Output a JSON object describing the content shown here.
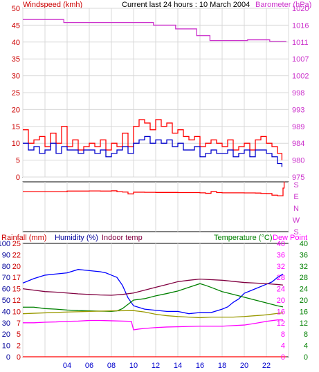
{
  "header": {
    "left_label": "Windspeed (kmh)",
    "title": "Current last 24 hours : 10 March 2004",
    "right_label": "Barometer (hPa)"
  },
  "lower_header": {
    "rainfall": "Rainfall (mm)",
    "humidity": "Humidity (%)",
    "indoor": "Indoor temp",
    "temperature": "Temperature (°C)",
    "dewpoint": "Dew Point"
  },
  "colors": {
    "wind_gust": "#ff0000",
    "wind_avg": "#0000cc",
    "barometer": "#cc33cc",
    "direction": "#ff0000",
    "humidity": "#0000ff",
    "indoor": "#800040",
    "temperature": "#008000",
    "dewpoint": "#ff00ff",
    "olive": "#999900",
    "rain": "#ff0000",
    "grid": "#d8d8d8"
  },
  "chart_data": [
    {
      "type": "line",
      "name": "wind-barometer",
      "x_ticks": [
        "04",
        "06",
        "08",
        "10",
        "12",
        "14",
        "16",
        "18",
        "20",
        "22"
      ],
      "y_left_ticks": [
        0,
        5,
        10,
        15,
        20,
        25,
        30,
        35,
        40,
        45,
        50
      ],
      "y_right_ticks": [
        975,
        980,
        984,
        989,
        993,
        998,
        1002,
        1007,
        1011,
        1016,
        1020
      ],
      "ylim_left": [
        0,
        50
      ],
      "ylim_right": [
        975,
        1020
      ],
      "xlim": [
        0,
        24
      ],
      "series": [
        {
          "key": "barometer",
          "axis": "right",
          "x": [
            0,
            3.7,
            3.7,
            11.8,
            11.8,
            13.8,
            13.8,
            15.7,
            15.7,
            16.9,
            16.9,
            20.3,
            20.3,
            22.3,
            22.3,
            23.8
          ],
          "y": [
            1017,
            1017,
            1016.2,
            1016.2,
            1015.5,
            1015.5,
            1014.5,
            1014.5,
            1012.7,
            1012.7,
            1011.4,
            1011.4,
            1011.6,
            1011.6,
            1011.2,
            1011.2
          ]
        },
        {
          "key": "wind_gust",
          "axis": "left",
          "x": [
            0,
            0.5,
            1,
            1.5,
            2,
            2.5,
            3,
            3.5,
            4,
            4.5,
            5,
            5.5,
            6,
            6.5,
            7,
            7.5,
            8,
            8.5,
            9,
            9.5,
            10,
            10.5,
            11,
            11.5,
            12,
            12.5,
            13,
            13.5,
            14,
            14.5,
            15,
            15.5,
            16,
            16.5,
            17,
            17.5,
            18,
            18.5,
            19,
            19.5,
            20,
            20.5,
            21,
            21.5,
            22,
            22.5,
            23,
            23.4
          ],
          "y": [
            14,
            10,
            11,
            12,
            9,
            13,
            10,
            15,
            9,
            11,
            8,
            9,
            10,
            9,
            11,
            8,
            10,
            9,
            13,
            9,
            15,
            17,
            16,
            14,
            17,
            15,
            16,
            13,
            14,
            12,
            11,
            12,
            9,
            10,
            11,
            10,
            9,
            11,
            8,
            9,
            10,
            8,
            11,
            12,
            10,
            9,
            7,
            5
          ]
        },
        {
          "key": "wind_avg",
          "axis": "left",
          "x": [
            0,
            0.5,
            1,
            1.5,
            2,
            2.5,
            3,
            3.5,
            4,
            4.5,
            5,
            5.5,
            6,
            6.5,
            7,
            7.5,
            8,
            8.5,
            9,
            9.5,
            10,
            10.5,
            11,
            11.5,
            12,
            12.5,
            13,
            13.5,
            14,
            14.5,
            15,
            15.5,
            16,
            16.5,
            17,
            17.5,
            18,
            18.5,
            19,
            19.5,
            20,
            20.5,
            21,
            21.5,
            22,
            22.5,
            23,
            23.4
          ],
          "y": [
            10,
            8,
            9,
            7,
            8,
            10,
            7,
            9,
            8,
            8,
            7,
            8,
            8,
            7,
            8,
            6,
            7,
            8,
            9,
            7,
            10,
            11,
            12,
            10,
            11,
            10,
            11,
            9,
            10,
            8,
            8,
            9,
            6,
            7,
            8,
            7,
            7,
            8,
            6,
            7,
            8,
            6,
            8,
            8,
            7,
            6,
            4,
            3
          ]
        }
      ]
    },
    {
      "type": "line",
      "name": "wind-direction",
      "y_right_ticks": [
        "S",
        "E",
        "N",
        "W",
        "S"
      ],
      "xlim": [
        0,
        24
      ],
      "series": [
        {
          "key": "direction",
          "x": [
            0,
            3.5,
            4,
            5,
            6,
            7,
            8,
            8.5,
            9,
            9.5,
            10,
            11,
            12,
            13,
            14,
            15,
            16,
            16.5,
            17,
            17.5,
            18,
            19,
            20,
            21,
            21.5,
            22,
            22.5,
            23,
            23.4,
            23.5,
            23.6
          ],
          "y": [
            0.79,
            0.79,
            0.74,
            0.74,
            0.73,
            0.74,
            0.72,
            0.79,
            0.82,
            0.97,
            0.83,
            0.84,
            0.85,
            0.85,
            0.86,
            0.86,
            0.88,
            0.92,
            0.78,
            0.86,
            0.88,
            0.88,
            0.89,
            0.9,
            0.93,
            0.94,
            1.07,
            1.12,
            1.12,
            0.5,
            -0.02
          ]
        }
      ]
    },
    {
      "type": "line",
      "name": "rain-humidity-temperature",
      "x_ticks": [
        "04",
        "06",
        "08",
        "10",
        "12",
        "14",
        "16",
        "18",
        "20",
        "22"
      ],
      "y_rain_ticks": [
        0,
        2,
        5,
        7,
        10,
        12,
        15,
        17,
        20,
        22,
        25
      ],
      "y_humidity_ticks": [
        0,
        10,
        20,
        30,
        40,
        50,
        60,
        70,
        80,
        90,
        100
      ],
      "y_temp_left_ticks": [
        0,
        4,
        8,
        12,
        16,
        20,
        24,
        28,
        32,
        36,
        40
      ],
      "y_temp_right_ticks": [
        0,
        4,
        8,
        12,
        16,
        20,
        24,
        28,
        32,
        36,
        40
      ],
      "xlim": [
        0,
        24
      ],
      "series": [
        {
          "key": "humidity",
          "axis": "humidity",
          "x": [
            0,
            1,
            2,
            3,
            4,
            5,
            6,
            7,
            7.5,
            8,
            8.5,
            9,
            9.5,
            10,
            11,
            12,
            13,
            14,
            15,
            16,
            17,
            18,
            18.5,
            19,
            19.5,
            20,
            21,
            22,
            22.5,
            23,
            23.5
          ],
          "y": [
            65,
            69,
            72,
            73,
            74,
            77,
            76,
            75,
            74,
            72,
            70,
            63,
            52,
            45,
            42,
            41,
            40,
            40,
            38,
            39,
            39,
            42,
            44,
            48,
            51,
            56,
            60,
            64,
            66,
            70,
            73
          ]
        },
        {
          "key": "indoor",
          "axis": "temp",
          "x": [
            0,
            1,
            2,
            3,
            4,
            5,
            6,
            7,
            8,
            9,
            10,
            11,
            12,
            13,
            14,
            15,
            16,
            17,
            18,
            19,
            20,
            21,
            22,
            23,
            23.5
          ],
          "y": [
            24,
            23.5,
            23,
            22.8,
            22.5,
            22.2,
            22,
            21.8,
            21.7,
            22,
            22.5,
            23.5,
            24.5,
            25.5,
            26.5,
            27,
            27.4,
            27.2,
            27,
            26.6,
            26.2,
            26,
            25.8,
            25.5,
            25.3
          ]
        },
        {
          "key": "temperature",
          "axis": "temp",
          "x": [
            0,
            1,
            2,
            3,
            4,
            5,
            6,
            7,
            8,
            8.5,
            9,
            9.5,
            10,
            11,
            12,
            13,
            14,
            15,
            16,
            16.5,
            17,
            18,
            19,
            20,
            21,
            22,
            23,
            23.5
          ],
          "y": [
            17.5,
            17.5,
            17,
            16.8,
            16.5,
            16.3,
            16.2,
            16.1,
            16,
            16.2,
            17,
            18.5,
            20,
            20.5,
            21.5,
            22.3,
            23.2,
            24.5,
            25.8,
            25.2,
            24.5,
            23,
            22,
            21,
            20,
            19,
            18,
            17.6
          ]
        },
        {
          "key": "olive",
          "axis": "temp",
          "x": [
            0,
            2,
            4,
            6,
            8,
            10,
            11,
            12,
            13,
            14,
            15,
            16,
            17,
            18,
            19,
            20,
            21,
            22,
            23,
            23.5
          ],
          "y": [
            15.2,
            15.5,
            15.8,
            16,
            16.2,
            16.3,
            15.8,
            15,
            14.5,
            14.2,
            14,
            13.8,
            14,
            14,
            14,
            14.2,
            14.5,
            14.8,
            15.3,
            15.5
          ]
        },
        {
          "key": "dewpoint",
          "axis": "temp",
          "x": [
            0,
            1,
            2,
            3,
            4,
            5,
            6,
            7,
            8,
            9,
            9.8,
            10,
            10.5,
            11,
            12,
            13,
            14,
            15,
            16,
            17,
            18,
            19,
            20,
            21,
            22,
            23,
            23.5
          ],
          "y": [
            12,
            12,
            12.2,
            12.3,
            12.5,
            12.6,
            12.8,
            12.8,
            12.7,
            12.6,
            12.5,
            9.5,
            9.8,
            10,
            10.3,
            10.5,
            10.6,
            10.7,
            10.8,
            10.8,
            10.8,
            11,
            11.2,
            11.8,
            12.5,
            13,
            13
          ]
        },
        {
          "key": "rain",
          "axis": "rain",
          "x": [
            0,
            23.8
          ],
          "y": [
            0,
            0
          ]
        }
      ]
    }
  ]
}
